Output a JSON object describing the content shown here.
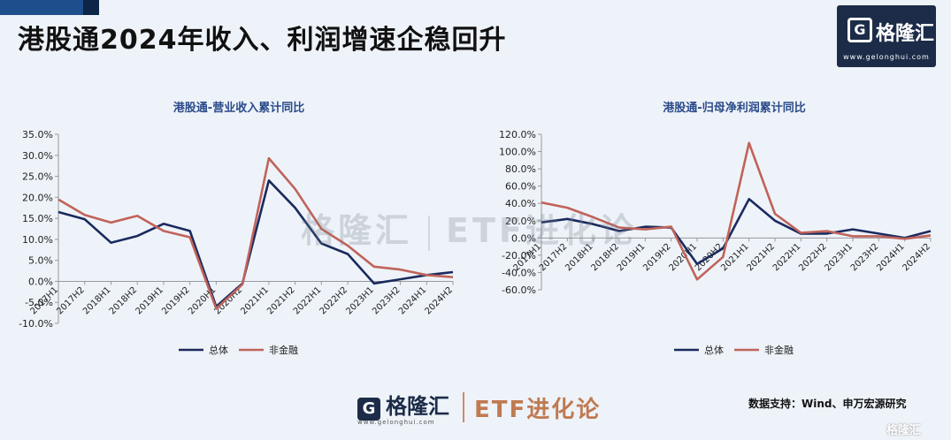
{
  "header": {
    "title": "港股通2024年收入、利润增速企稳回升"
  },
  "logo": {
    "mark": "G",
    "name": "格隆汇",
    "url": "www.gelonghui.com"
  },
  "watermark": {
    "brand": "格隆汇",
    "etf": "ETF进化论"
  },
  "footer": {
    "logo_mark": "G",
    "logo_name": "格隆汇",
    "logo_url": "www.gelonghui.com",
    "etf": "ETF进化论",
    "source": "数据支持：Wind、申万宏源研究",
    "corner": "格隆汇"
  },
  "colors": {
    "total": "#1a2a5e",
    "nonfin": "#c0635a"
  },
  "chart_data": [
    {
      "type": "line",
      "title": "港股通-营业收入累计同比",
      "categories": [
        "2017H1",
        "2017H2",
        "2018H1",
        "2018H2",
        "2019H1",
        "2019H2",
        "2020H1",
        "2020H2",
        "2021H1",
        "2021H2",
        "2022H1",
        "2022H2",
        "2023H1",
        "2023H2",
        "2024H1",
        "2024H2"
      ],
      "y_ticks": [
        "35.0%",
        "30.0%",
        "25.0%",
        "20.0%",
        "15.0%",
        "10.0%",
        "5.0%",
        "0.0%",
        "-5.0%",
        "-10.0%"
      ],
      "ylim": [
        -10,
        35
      ],
      "series": [
        {
          "name": "总体",
          "values": [
            16.5,
            14.8,
            9.2,
            10.8,
            13.7,
            12.0,
            -6.0,
            -0.5,
            24.0,
            17.5,
            9.0,
            6.5,
            -0.5,
            0.5,
            1.5,
            2.2
          ]
        },
        {
          "name": "非金融",
          "values": [
            19.5,
            15.8,
            14.0,
            15.6,
            12.0,
            10.5,
            -6.5,
            -0.7,
            29.3,
            22.0,
            12.5,
            8.5,
            3.5,
            2.8,
            1.5,
            1.0
          ]
        }
      ],
      "legend_position": "bottom"
    },
    {
      "type": "line",
      "title": "港股通-归母净利润累计同比",
      "categories": [
        "2017H1",
        "2017H2",
        "2018H1",
        "2018H2",
        "2019H1",
        "2019H2",
        "2020H1",
        "2020H2",
        "2021H1",
        "2021H2",
        "2022H1",
        "2022H2",
        "2023H1",
        "2023H2",
        "2024H1",
        "2024H2"
      ],
      "y_ticks": [
        "120.0%",
        "100.0%",
        "80.0%",
        "60.0%",
        "40.0%",
        "20.0%",
        "0.0%",
        "-20.0%",
        "-40.0%",
        "-60.0%"
      ],
      "ylim": [
        -60,
        120
      ],
      "series": [
        {
          "name": "总体",
          "values": [
            18,
            22,
            16,
            8,
            13,
            12,
            -30,
            -12,
            45,
            20,
            5,
            5,
            10,
            5,
            0,
            8
          ]
        },
        {
          "name": "非金融",
          "values": [
            41,
            35,
            24,
            12,
            10,
            13,
            -48,
            -22,
            110,
            28,
            6,
            8,
            2,
            2,
            -1,
            3
          ]
        }
      ],
      "legend_position": "bottom"
    }
  ]
}
